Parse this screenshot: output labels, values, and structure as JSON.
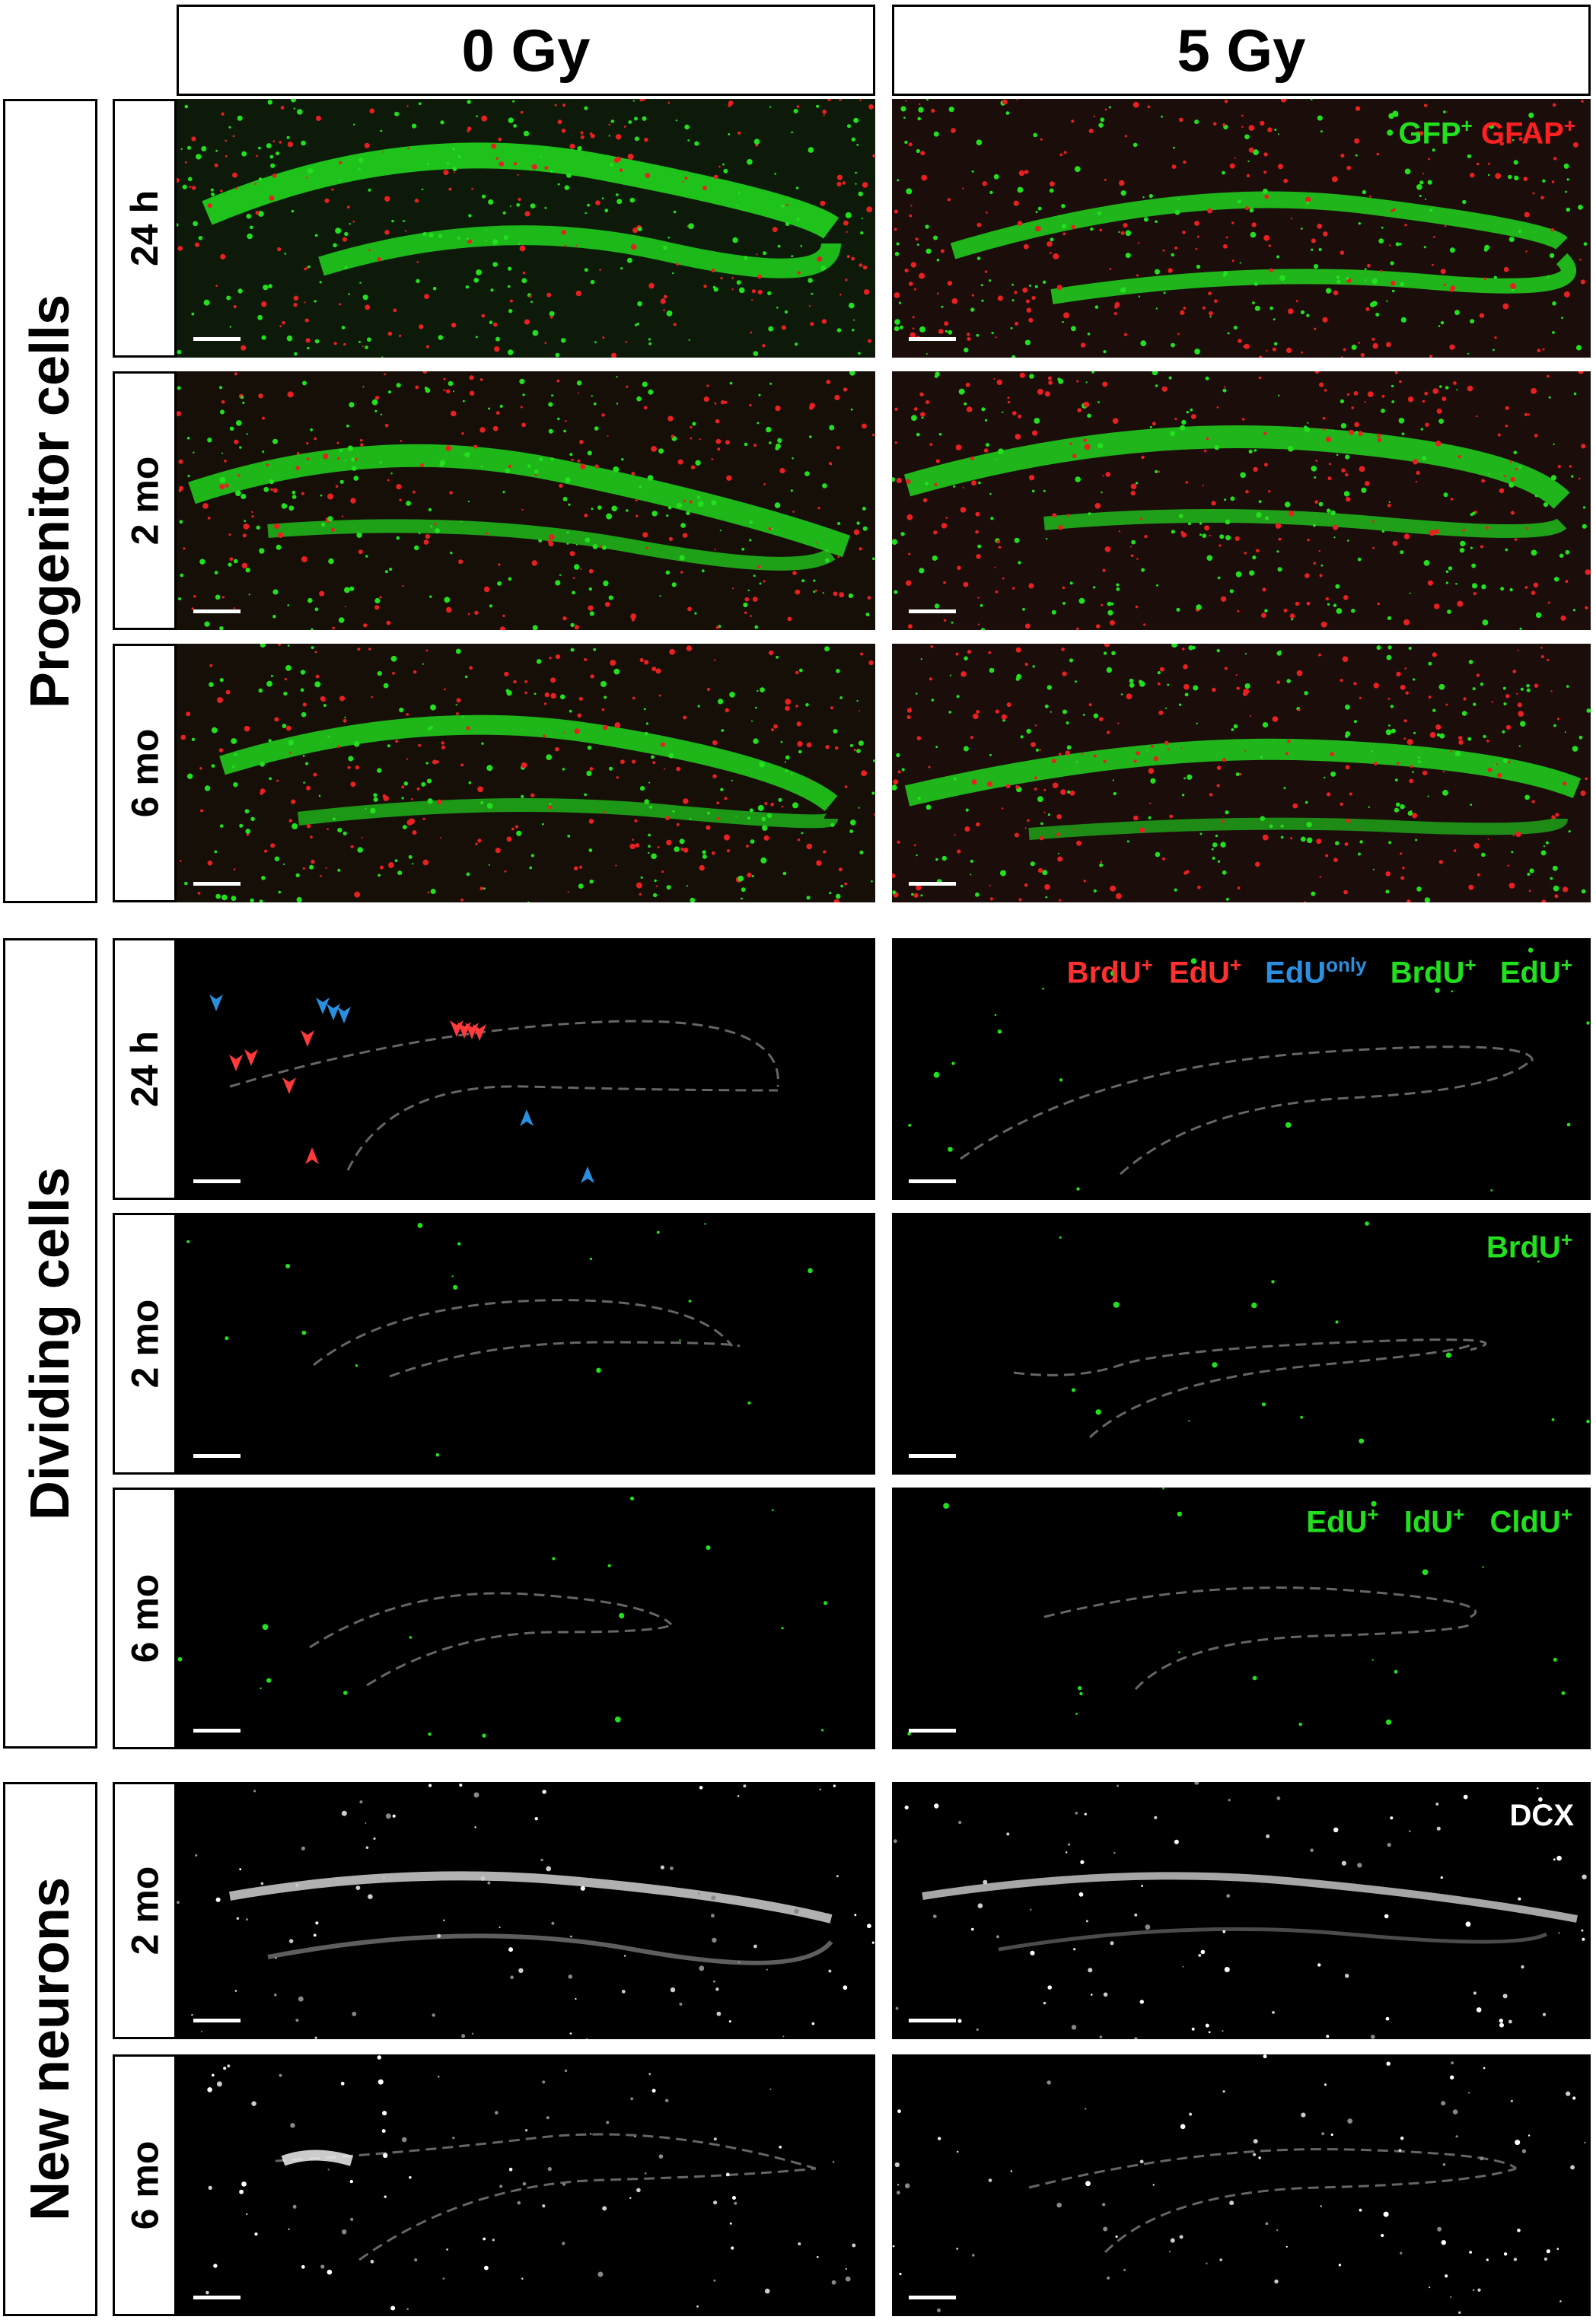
{
  "columns": [
    "0 Gy",
    "5 Gy"
  ],
  "sections": [
    {
      "label": "Progenitor cells",
      "rows": [
        "24 h",
        "2 mo",
        "6 mo"
      ]
    },
    {
      "label": "Dividing cells",
      "rows": [
        "24 h",
        "2 mo",
        "6 mo"
      ]
    },
    {
      "label": "New neurons",
      "rows": [
        "2 mo",
        "6 mo"
      ]
    }
  ],
  "legends": {
    "progenitor": [
      {
        "text": "GFP",
        "sup": "+",
        "color": "#22e01e"
      },
      {
        "text": "GFAP",
        "sup": "+",
        "color": "#ff2020"
      }
    ],
    "dividing_24h": [
      {
        "text": "BrdU",
        "sup": "+",
        "color": "#ff3030"
      },
      {
        "text": "EdU",
        "sup": "+",
        "color": "#ff3030"
      },
      {
        "text": "EdU",
        "sup": "only",
        "color": "#2b8fe0"
      },
      {
        "text": "BrdU",
        "sup": "+",
        "color": "#22e01e"
      },
      {
        "text": "EdU",
        "sup": "+",
        "color": "#22e01e"
      }
    ],
    "dividing_2mo": [
      {
        "text": "BrdU",
        "sup": "+",
        "color": "#22e01e"
      }
    ],
    "dividing_6mo": [
      {
        "text": "EdU",
        "sup": "+",
        "color": "#22e01e"
      },
      {
        "text": "IdU",
        "sup": "+",
        "color": "#22e01e"
      },
      {
        "text": "CldU",
        "sup": "+",
        "color": "#22e01e"
      }
    ],
    "neurons": [
      {
        "text": "DCX",
        "sup": "",
        "color": "#ffffff"
      }
    ]
  },
  "colors": {
    "gfp": "#22e01e",
    "gfap": "#e82020",
    "double_label_arrow": "#ff3a3a",
    "edu_only_arrow": "#2b8fe0",
    "dcx": "#ffffff"
  }
}
